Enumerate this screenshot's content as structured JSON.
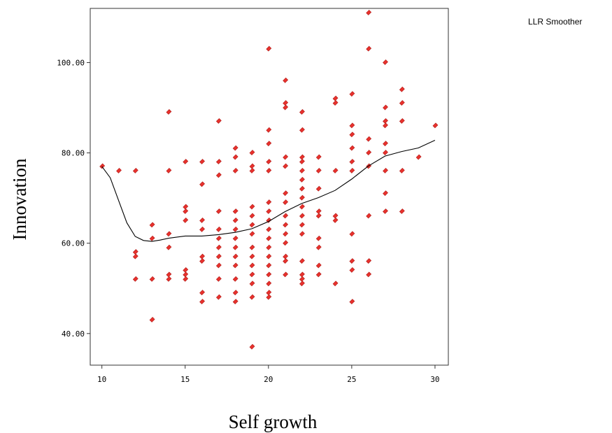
{
  "chart_data": {
    "type": "scatter",
    "xlabel": "Self growth",
    "ylabel": "Innovation",
    "legend": "LLR Smoother",
    "legend_position": "top-right",
    "grid": false,
    "xlim": [
      9.3,
      30.8
    ],
    "ylim": [
      33,
      112
    ],
    "x_ticks": [
      10,
      15,
      20,
      25,
      30
    ],
    "x_tick_labels": [
      "10",
      "15",
      "20",
      "25",
      "30"
    ],
    "y_ticks": [
      40,
      60,
      80,
      100
    ],
    "y_tick_labels": [
      "40.00",
      "60.00",
      "80.00",
      "100.00"
    ],
    "marker_color": "#e8312d",
    "line_color": "#000000",
    "series": [
      {
        "points": [
          [
            10,
            77
          ],
          [
            11,
            76
          ],
          [
            12,
            76
          ],
          [
            12,
            58
          ],
          [
            12,
            57
          ],
          [
            12,
            52
          ],
          [
            13,
            64
          ],
          [
            13,
            61
          ],
          [
            13,
            52
          ],
          [
            13,
            43
          ],
          [
            14,
            89
          ],
          [
            14,
            76
          ],
          [
            14,
            62
          ],
          [
            14,
            59
          ],
          [
            14,
            53
          ],
          [
            14,
            52
          ],
          [
            15,
            78
          ],
          [
            15,
            68
          ],
          [
            15,
            67
          ],
          [
            15,
            65
          ],
          [
            15,
            54
          ],
          [
            15,
            53
          ],
          [
            15,
            52
          ],
          [
            16,
            78
          ],
          [
            16,
            73
          ],
          [
            16,
            65
          ],
          [
            16,
            63
          ],
          [
            16,
            57
          ],
          [
            16,
            56
          ],
          [
            16,
            49
          ],
          [
            16,
            47
          ],
          [
            17,
            87
          ],
          [
            17,
            78
          ],
          [
            17,
            75
          ],
          [
            17,
            67
          ],
          [
            17,
            63
          ],
          [
            17,
            61
          ],
          [
            17,
            59
          ],
          [
            17,
            57
          ],
          [
            17,
            55
          ],
          [
            17,
            52
          ],
          [
            17,
            48
          ],
          [
            18,
            81
          ],
          [
            18,
            79
          ],
          [
            18,
            76
          ],
          [
            18,
            67
          ],
          [
            18,
            65
          ],
          [
            18,
            63
          ],
          [
            18,
            61
          ],
          [
            18,
            59
          ],
          [
            18,
            57
          ],
          [
            18,
            55
          ],
          [
            18,
            52
          ],
          [
            18,
            49
          ],
          [
            18,
            47
          ],
          [
            19,
            80
          ],
          [
            19,
            77
          ],
          [
            19,
            76
          ],
          [
            19,
            68
          ],
          [
            19,
            66
          ],
          [
            19,
            64
          ],
          [
            19,
            62
          ],
          [
            19,
            59
          ],
          [
            19,
            57
          ],
          [
            19,
            55
          ],
          [
            19,
            53
          ],
          [
            19,
            51
          ],
          [
            19,
            48
          ],
          [
            19,
            37
          ],
          [
            20,
            103
          ],
          [
            20,
            85
          ],
          [
            20,
            82
          ],
          [
            20,
            78
          ],
          [
            20,
            76
          ],
          [
            20,
            69
          ],
          [
            20,
            67
          ],
          [
            20,
            65
          ],
          [
            20,
            63
          ],
          [
            20,
            61
          ],
          [
            20,
            59
          ],
          [
            20,
            57
          ],
          [
            20,
            55
          ],
          [
            20,
            53
          ],
          [
            20,
            51
          ],
          [
            20,
            49
          ],
          [
            20,
            48
          ],
          [
            21,
            96
          ],
          [
            21,
            91
          ],
          [
            21,
            90
          ],
          [
            21,
            79
          ],
          [
            21,
            77
          ],
          [
            21,
            71
          ],
          [
            21,
            69
          ],
          [
            21,
            66
          ],
          [
            21,
            64
          ],
          [
            21,
            62
          ],
          [
            21,
            60
          ],
          [
            21,
            57
          ],
          [
            21,
            56
          ],
          [
            21,
            53
          ],
          [
            22,
            89
          ],
          [
            22,
            85
          ],
          [
            22,
            79
          ],
          [
            22,
            78
          ],
          [
            22,
            76
          ],
          [
            22,
            74
          ],
          [
            22,
            72
          ],
          [
            22,
            70
          ],
          [
            22,
            68
          ],
          [
            22,
            66
          ],
          [
            22,
            64
          ],
          [
            22,
            62
          ],
          [
            22,
            56
          ],
          [
            22,
            53
          ],
          [
            22,
            52
          ],
          [
            22,
            51
          ],
          [
            23,
            79
          ],
          [
            23,
            76
          ],
          [
            23,
            72
          ],
          [
            23,
            67
          ],
          [
            23,
            66
          ],
          [
            23,
            61
          ],
          [
            23,
            59
          ],
          [
            23,
            55
          ],
          [
            23,
            53
          ],
          [
            24,
            92
          ],
          [
            24,
            91
          ],
          [
            24,
            76
          ],
          [
            24,
            66
          ],
          [
            24,
            65
          ],
          [
            24,
            51
          ],
          [
            25,
            93
          ],
          [
            25,
            86
          ],
          [
            25,
            84
          ],
          [
            25,
            81
          ],
          [
            25,
            78
          ],
          [
            25,
            76
          ],
          [
            25,
            62
          ],
          [
            25,
            56
          ],
          [
            25,
            54
          ],
          [
            25,
            47
          ],
          [
            26,
            111
          ],
          [
            26,
            103
          ],
          [
            26,
            83
          ],
          [
            26,
            80
          ],
          [
            26,
            77
          ],
          [
            26,
            66
          ],
          [
            26,
            56
          ],
          [
            26,
            53
          ],
          [
            27,
            100
          ],
          [
            27,
            90
          ],
          [
            27,
            87
          ],
          [
            27,
            86
          ],
          [
            27,
            82
          ],
          [
            27,
            80
          ],
          [
            27,
            76
          ],
          [
            27,
            71
          ],
          [
            27,
            67
          ],
          [
            28,
            94
          ],
          [
            28,
            91
          ],
          [
            28,
            87
          ],
          [
            28,
            76
          ],
          [
            28,
            67
          ],
          [
            29,
            79
          ],
          [
            30,
            86
          ]
        ]
      },
      {
        "name": "LLR Smoother",
        "type": "line",
        "points": [
          [
            10,
            77
          ],
          [
            10.5,
            74.5
          ],
          [
            11,
            69.5
          ],
          [
            11.5,
            64.5
          ],
          [
            12,
            61.5
          ],
          [
            12.5,
            60.6
          ],
          [
            13,
            60.4
          ],
          [
            13.5,
            60.7
          ],
          [
            14,
            61.1
          ],
          [
            15,
            61.6
          ],
          [
            16,
            61.6
          ],
          [
            17,
            61.9
          ],
          [
            18,
            62.4
          ],
          [
            19,
            63.2
          ],
          [
            20,
            64.8
          ],
          [
            21,
            67
          ],
          [
            22,
            68.8
          ],
          [
            23,
            70.1
          ],
          [
            24,
            71.7
          ],
          [
            25,
            74.2
          ],
          [
            26,
            77.1
          ],
          [
            27,
            79.3
          ],
          [
            28,
            80.3
          ],
          [
            29,
            81.1
          ],
          [
            30,
            82.8
          ]
        ]
      }
    ]
  }
}
